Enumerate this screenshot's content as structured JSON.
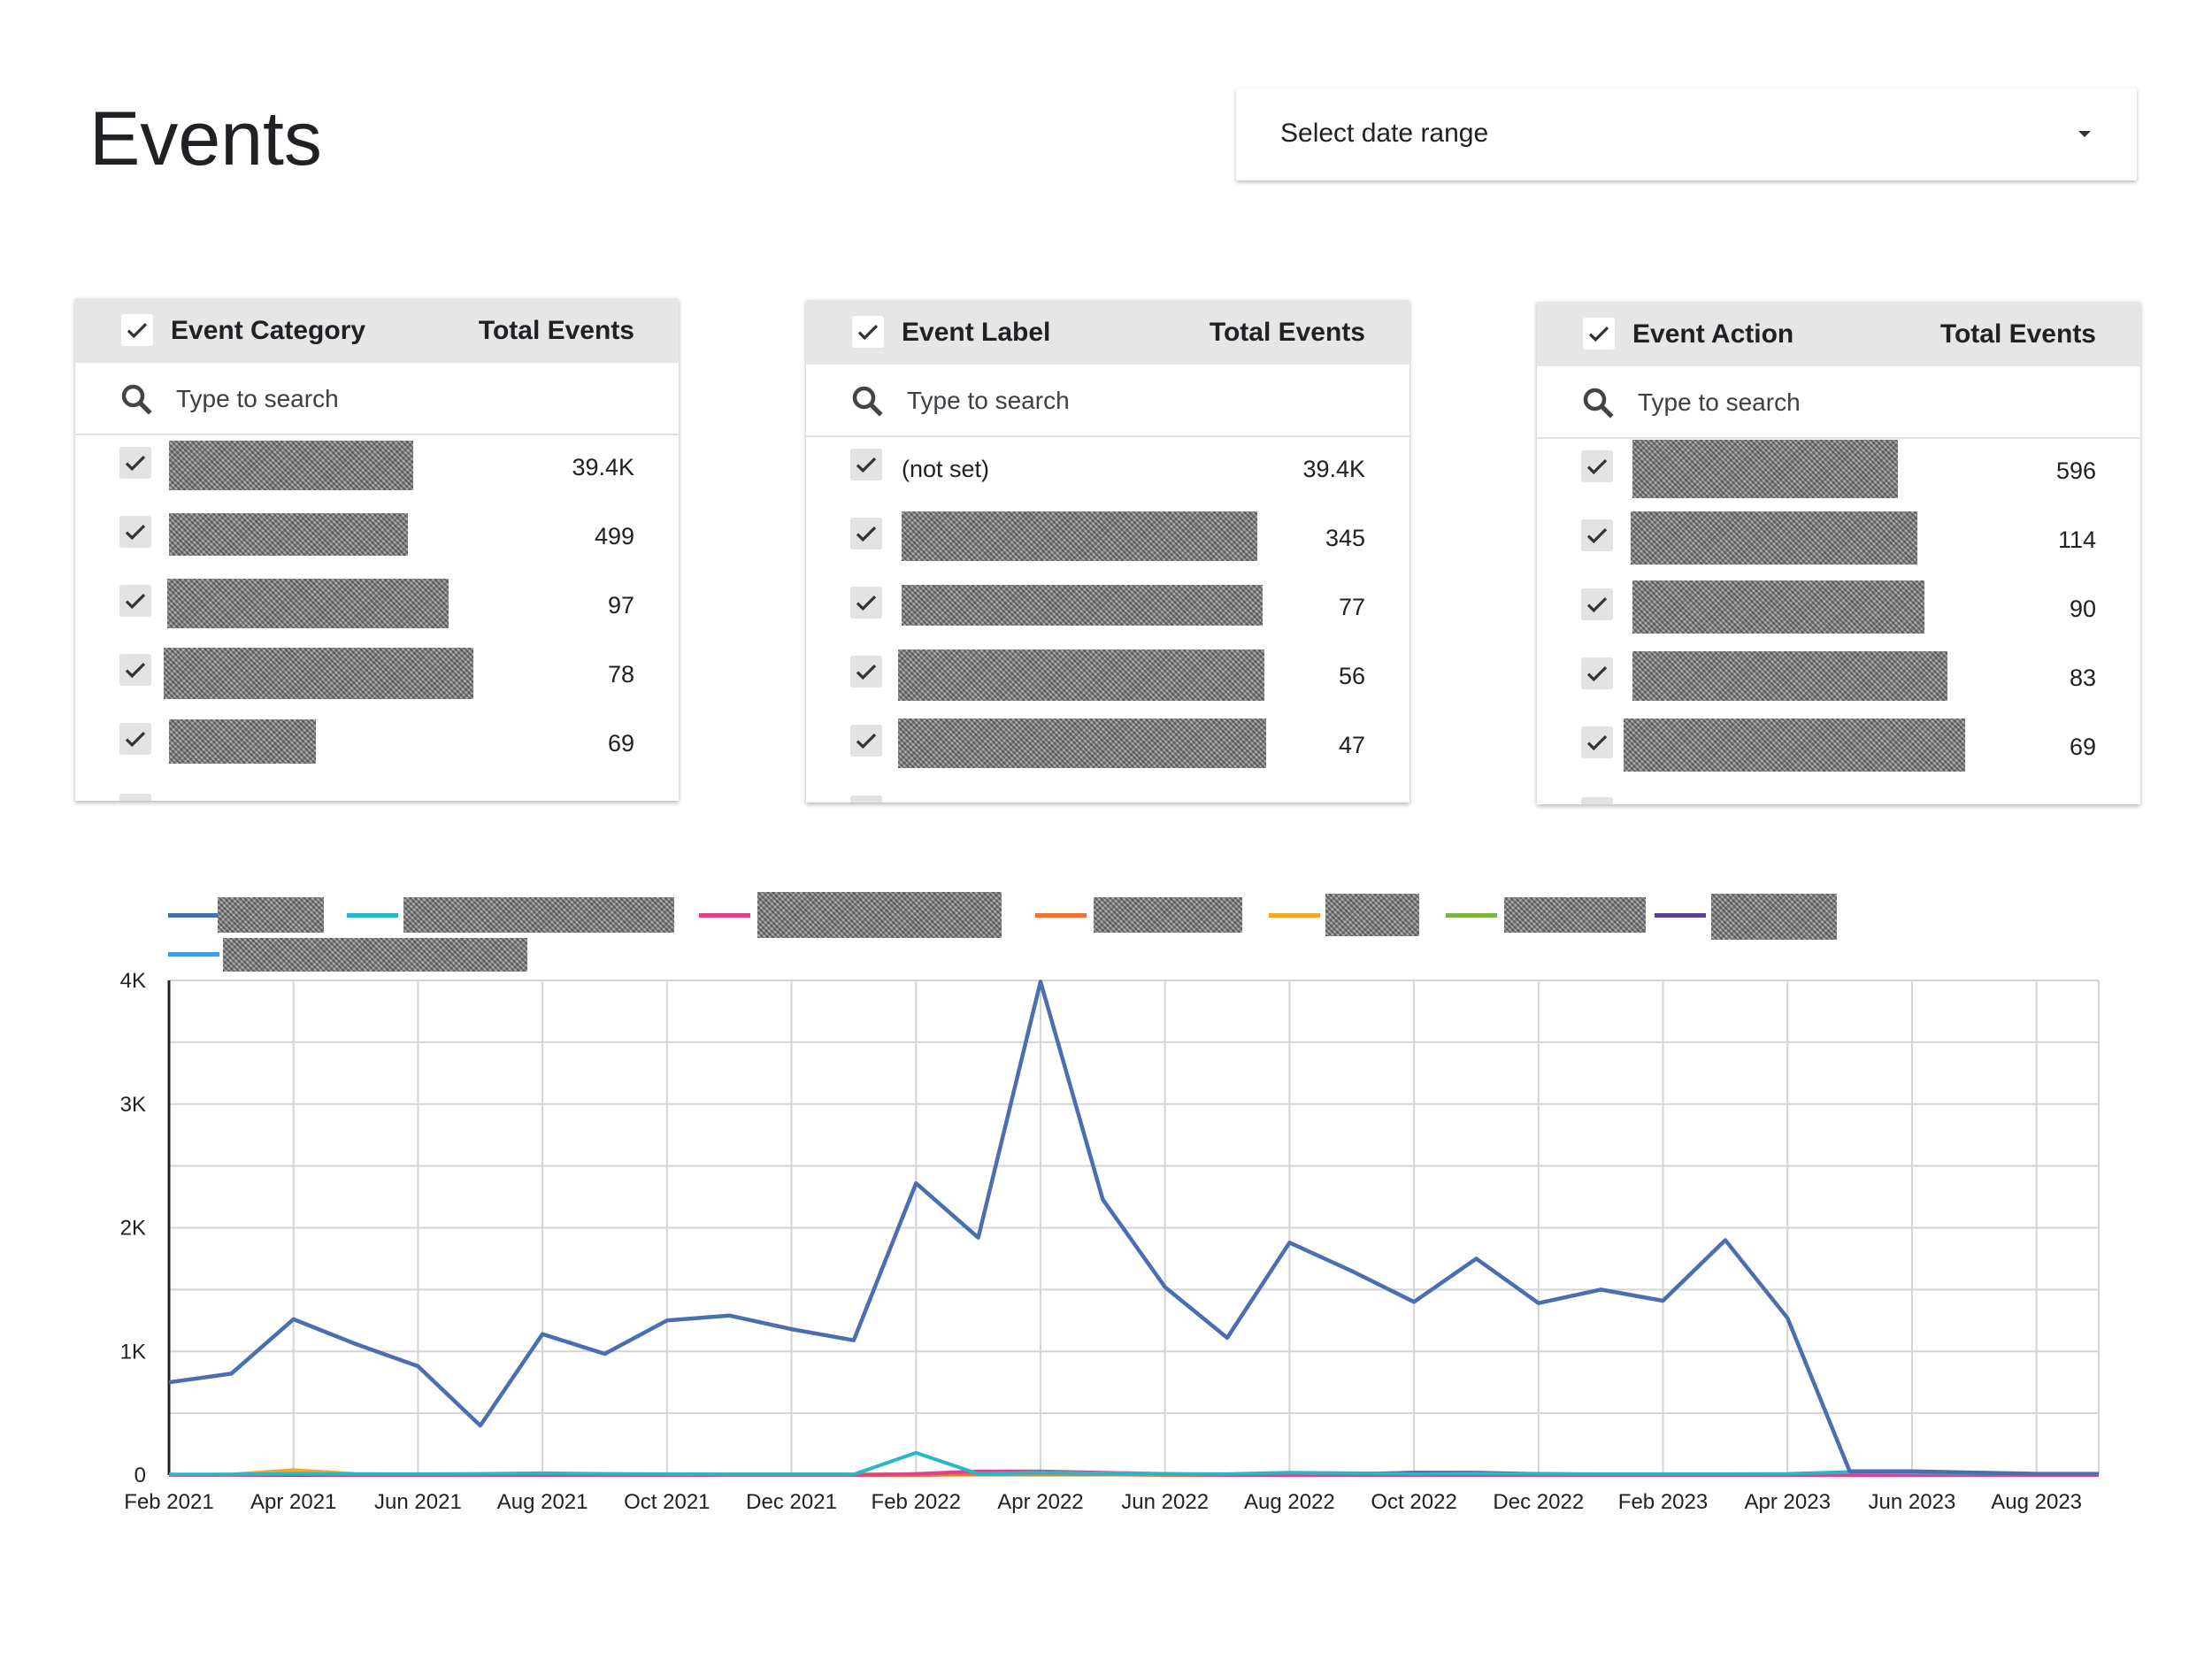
{
  "page": {
    "title": "Events"
  },
  "date_range": {
    "label": "Select date range"
  },
  "tables": [
    {
      "dimension": "Event Category",
      "metric": "Total Events",
      "search_placeholder": "Type to search",
      "rows": [
        {
          "label": "",
          "value": "39.4K"
        },
        {
          "label": "",
          "value": "499"
        },
        {
          "label": "",
          "value": "97"
        },
        {
          "label": "",
          "value": "78"
        },
        {
          "label": "",
          "value": "69"
        }
      ]
    },
    {
      "dimension": "Event Label",
      "metric": "Total Events",
      "search_placeholder": "Type to search",
      "rows": [
        {
          "label": "(not set)",
          "value": "39.4K"
        },
        {
          "label": "",
          "value": "345"
        },
        {
          "label": "",
          "value": "77"
        },
        {
          "label": "",
          "value": "56"
        },
        {
          "label": "",
          "value": "47"
        }
      ]
    },
    {
      "dimension": "Event Action",
      "metric": "Total Events",
      "search_placeholder": "Type to search",
      "rows": [
        {
          "label": "",
          "value": "596"
        },
        {
          "label": "",
          "value": "114"
        },
        {
          "label": "",
          "value": "90"
        },
        {
          "label": "",
          "value": "83"
        },
        {
          "label": "",
          "value": "69"
        }
      ]
    }
  ],
  "chart_data": {
    "type": "line",
    "x": [
      "2021-02",
      "2021-03",
      "2021-04",
      "2021-05",
      "2021-06",
      "2021-07",
      "2021-08",
      "2021-09",
      "2021-10",
      "2021-11",
      "2021-12",
      "2022-01",
      "2022-02",
      "2022-03",
      "2022-04",
      "2022-05",
      "2022-06",
      "2022-07",
      "2022-08",
      "2022-09",
      "2022-10",
      "2022-11",
      "2022-12",
      "2023-01",
      "2023-02",
      "2023-03",
      "2023-04",
      "2023-05",
      "2023-06",
      "2023-07",
      "2023-08",
      "2023-09"
    ],
    "x_tick_labels": [
      "Feb 2021",
      "Apr 2021",
      "Jun 2021",
      "Aug 2021",
      "Oct 2021",
      "Dec 2021",
      "Feb 2022",
      "Apr 2022",
      "Jun 2022",
      "Aug 2022",
      "Oct 2022",
      "Dec 2022",
      "Feb 2023",
      "Apr 2023",
      "Jun 2023",
      "Aug 2023"
    ],
    "y_tick_labels": [
      "0",
      "1K",
      "2K",
      "3K",
      "4K"
    ],
    "y_ticks": [
      0,
      1000,
      2000,
      3000,
      4000
    ],
    "ylim": [
      0,
      4000
    ],
    "grid": true,
    "legend_placement": "top",
    "series": [
      {
        "color": "#4a6fb0",
        "values": [
          750,
          820,
          1260,
          1060,
          880,
          400,
          1140,
          980,
          1250,
          1290,
          1180,
          1090,
          2360,
          1920,
          3990,
          2230,
          1520,
          1110,
          1880,
          1650,
          1400,
          1750,
          1390,
          1500,
          1410,
          1900,
          1270,
          30,
          30,
          20,
          10,
          10
        ]
      },
      {
        "color": "#26b8c9",
        "values": [
          5,
          5,
          10,
          8,
          8,
          10,
          15,
          10,
          8,
          6,
          5,
          5,
          180,
          10,
          20,
          15,
          10,
          8,
          20,
          15,
          10,
          12,
          10,
          8,
          8,
          8,
          10,
          25,
          20,
          15,
          10,
          8
        ]
      },
      {
        "color": "#e0418a",
        "values": [
          0,
          0,
          5,
          0,
          0,
          0,
          0,
          0,
          0,
          0,
          0,
          0,
          10,
          30,
          30,
          20,
          10,
          0,
          0,
          0,
          0,
          0,
          0,
          0,
          0,
          0,
          0,
          0,
          0,
          0,
          0,
          0
        ]
      },
      {
        "color": "#f0742f",
        "values": [
          0,
          0,
          10,
          5,
          0,
          0,
          0,
          0,
          0,
          0,
          0,
          0,
          0,
          5,
          10,
          5,
          0,
          0,
          0,
          0,
          0,
          0,
          0,
          0,
          0,
          0,
          0,
          0,
          0,
          0,
          0,
          0
        ]
      },
      {
        "color": "#f5a623",
        "values": [
          0,
          5,
          40,
          10,
          5,
          5,
          5,
          5,
          5,
          5,
          5,
          5,
          5,
          5,
          5,
          5,
          5,
          5,
          5,
          5,
          5,
          5,
          5,
          5,
          5,
          5,
          5,
          5,
          5,
          5,
          5,
          5
        ]
      },
      {
        "color": "#7cb342",
        "values": [
          0,
          0,
          20,
          5,
          5,
          5,
          5,
          5,
          5,
          5,
          5,
          5,
          5,
          5,
          5,
          5,
          5,
          5,
          15,
          10,
          5,
          5,
          5,
          5,
          5,
          5,
          5,
          5,
          5,
          5,
          5,
          5
        ]
      },
      {
        "color": "#5b3e96",
        "values": [
          0,
          0,
          0,
          0,
          0,
          0,
          0,
          0,
          0,
          0,
          0,
          0,
          0,
          10,
          20,
          10,
          5,
          5,
          10,
          10,
          20,
          20,
          10,
          5,
          5,
          5,
          5,
          10,
          10,
          5,
          5,
          5
        ]
      },
      {
        "color": "#3e9fe0",
        "values": [
          0,
          0,
          5,
          5,
          5,
          5,
          5,
          5,
          5,
          5,
          5,
          5,
          5,
          10,
          10,
          10,
          5,
          5,
          5,
          5,
          5,
          5,
          5,
          5,
          5,
          5,
          5,
          10,
          10,
          5,
          5,
          5
        ]
      }
    ]
  }
}
